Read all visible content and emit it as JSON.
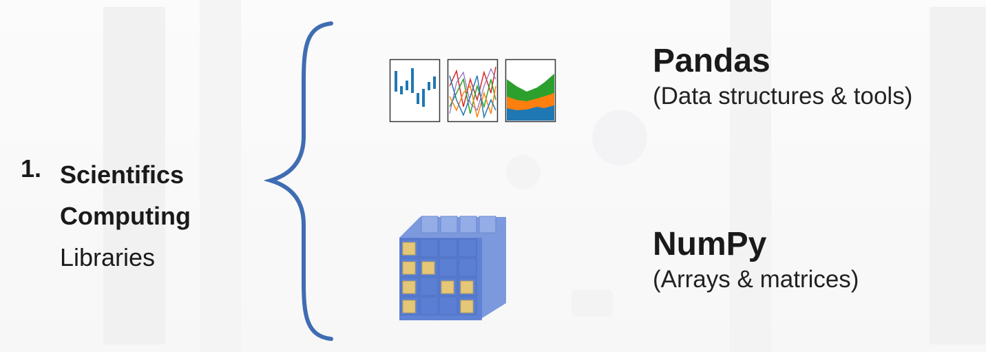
{
  "category": {
    "number": "1.",
    "title_line1": "Scientifics",
    "title_line2": "Computing",
    "subtitle": "Libraries"
  },
  "libraries": [
    {
      "name": "Pandas",
      "description": "(Data structures & tools)",
      "icon": "pandas-charts-icon"
    },
    {
      "name": "NumPy",
      "description": "(Arrays & matrices)",
      "icon": "numpy-cube-icon"
    }
  ],
  "colors": {
    "brace": "#3f6db3",
    "text": "#1a1a1a",
    "numpy_blue": "#4a72d0",
    "numpy_gold": "#e3c26a",
    "pandas_bar_blue": "#1f77b4",
    "pandas_green": "#2ca02c",
    "pandas_orange": "#ff7f0e",
    "pandas_red": "#d62728"
  }
}
